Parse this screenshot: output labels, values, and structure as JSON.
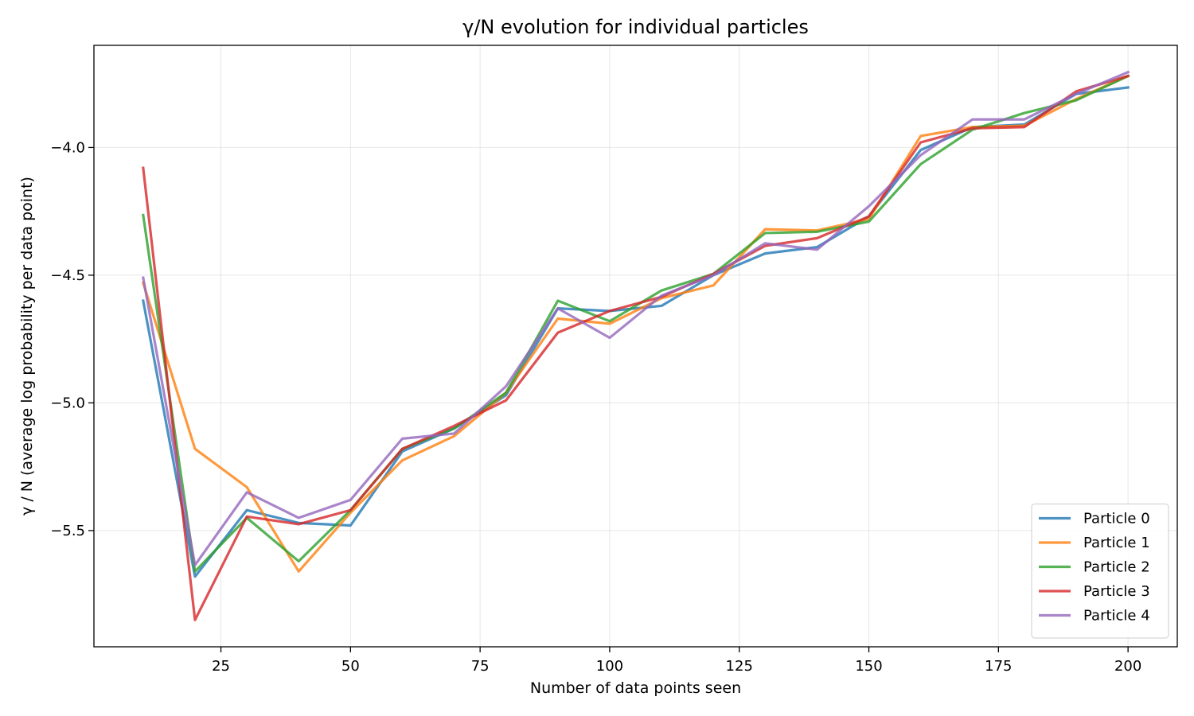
{
  "chart_data": {
    "type": "line",
    "title": "γ/N evolution for individual particles",
    "xlabel": "Number of data points seen",
    "ylabel": "γ / N (average log probability per data point)",
    "xlim": [
      0.5,
      209.5
    ],
    "ylim": [
      -5.955,
      -3.6
    ],
    "xticks": [
      25,
      50,
      75,
      100,
      125,
      150,
      175,
      200
    ],
    "xtick_labels": [
      "25",
      "50",
      "75",
      "100",
      "125",
      "150",
      "175",
      "200"
    ],
    "yticks": [
      -5.5,
      -5.0,
      -4.5,
      -4.0
    ],
    "ytick_labels": [
      "−5.5",
      "−5.0",
      "−4.5",
      "−4.0"
    ],
    "grid": true,
    "legend_position": "lower-right",
    "x": [
      10,
      20,
      30,
      40,
      50,
      60,
      70,
      80,
      90,
      100,
      110,
      120,
      130,
      140,
      150,
      160,
      170,
      180,
      190,
      200
    ],
    "series": [
      {
        "name": "Particle 0",
        "color": "#1f77b4",
        "values": [
          -4.6,
          -5.68,
          -5.42,
          -5.47,
          -5.48,
          -5.19,
          -5.1,
          -4.97,
          -4.63,
          -4.64,
          -4.62,
          -4.5,
          -4.415,
          -4.39,
          -4.27,
          -4.01,
          -3.92,
          -3.91,
          -3.79,
          -3.765
        ]
      },
      {
        "name": "Particle 1",
        "color": "#ff7f0e",
        "values": [
          -4.53,
          -5.18,
          -5.33,
          -5.66,
          -5.43,
          -5.225,
          -5.13,
          -4.96,
          -4.67,
          -4.69,
          -4.59,
          -4.54,
          -4.32,
          -4.325,
          -4.28,
          -3.955,
          -3.92,
          -3.915,
          -3.81,
          -3.72
        ]
      },
      {
        "name": "Particle 2",
        "color": "#2ca02c",
        "values": [
          -4.265,
          -5.66,
          -5.45,
          -5.62,
          -5.42,
          -5.18,
          -5.1,
          -4.96,
          -4.6,
          -4.68,
          -4.56,
          -4.495,
          -4.335,
          -4.33,
          -4.29,
          -4.065,
          -3.93,
          -3.865,
          -3.815,
          -3.72
        ]
      },
      {
        "name": "Particle 3",
        "color": "#d62728",
        "values": [
          -4.08,
          -5.85,
          -5.445,
          -5.475,
          -5.42,
          -5.18,
          -5.09,
          -4.99,
          -4.725,
          -4.64,
          -4.585,
          -4.495,
          -4.385,
          -4.355,
          -4.27,
          -3.98,
          -3.925,
          -3.92,
          -3.78,
          -3.72
        ]
      },
      {
        "name": "Particle 4",
        "color": "#9467bd",
        "values": [
          -4.51,
          -5.635,
          -5.35,
          -5.45,
          -5.38,
          -5.14,
          -5.12,
          -4.935,
          -4.63,
          -4.745,
          -4.58,
          -4.5,
          -4.375,
          -4.4,
          -4.23,
          -4.03,
          -3.89,
          -3.89,
          -3.79,
          -3.705
        ]
      }
    ]
  }
}
